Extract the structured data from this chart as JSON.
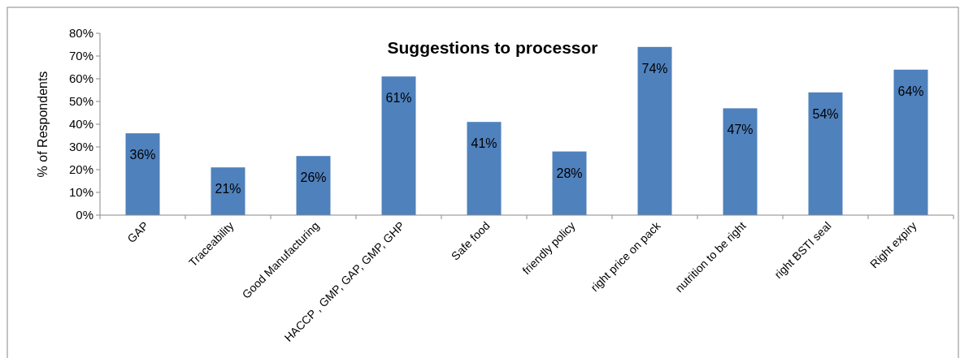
{
  "chart_data": {
    "type": "bar",
    "title": "Suggestions to processor",
    "ylabel": "% of Respondents",
    "categories": [
      "GAP",
      "Traceability",
      "Good Manufacturing",
      "HACCP , GMP, GAP, GMP, GHP",
      "Safe food",
      "friendly policy",
      "right price on pack",
      "nutrition to be right",
      "right BSTI seal",
      "Right expiry"
    ],
    "values": [
      36,
      21,
      26,
      61,
      41,
      28,
      74,
      47,
      54,
      64
    ],
    "value_labels": [
      "36%",
      "21%",
      "26%",
      "61%",
      "41%",
      "28%",
      "74%",
      "47%",
      "54%",
      "64%"
    ],
    "color": "#4f81bd",
    "ylim": [
      0,
      80
    ],
    "yticks": [
      {
        "value": 0,
        "label": "0%"
      },
      {
        "value": 10,
        "label": "10%"
      },
      {
        "value": 20,
        "label": "20%"
      },
      {
        "value": 30,
        "label": "30%"
      },
      {
        "value": 40,
        "label": "40%"
      },
      {
        "value": 50,
        "label": "50%"
      },
      {
        "value": 60,
        "label": "60%"
      },
      {
        "value": 70,
        "label": "70%"
      },
      {
        "value": 80,
        "label": "80%"
      }
    ],
    "grid": false
  }
}
